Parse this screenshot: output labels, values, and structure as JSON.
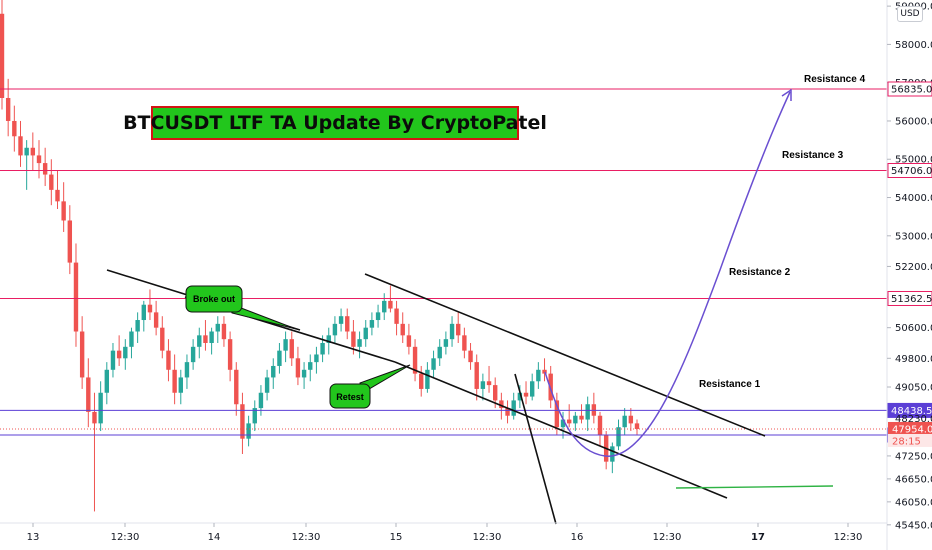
{
  "chart_data": {
    "type": "candlestick",
    "title": "BTCUSDT LTF TA Update By CryptoPatel",
    "currency": "USD",
    "y_axis": {
      "range": [
        45200,
        59500
      ],
      "ticks": [
        "45450.0",
        "46050.0",
        "46650.0",
        "47250.0",
        "49050.0",
        "49800.0",
        "50600.0",
        "51400.0",
        "52200.0",
        "53000.0",
        "54000.0",
        "55000.0",
        "56000.0",
        "57000.0",
        "58000.0",
        "59000.0"
      ]
    },
    "x_axis": {
      "ticks": [
        {
          "label": "13",
          "bold": false
        },
        {
          "label": "12:30",
          "bold": false
        },
        {
          "label": "14",
          "bold": false
        },
        {
          "label": "12:30",
          "bold": false
        },
        {
          "label": "15",
          "bold": false
        },
        {
          "label": "12:30",
          "bold": false
        },
        {
          "label": "16",
          "bold": false
        },
        {
          "label": "12:30",
          "bold": false
        },
        {
          "label": "17",
          "bold": true
        },
        {
          "label": "12:30",
          "bold": false
        }
      ]
    },
    "horizontal_levels": [
      {
        "name": "Resistance 4",
        "value": 56835.0,
        "label": "56835.0",
        "color": "#e91e63"
      },
      {
        "name": "Resistance 3",
        "value": 54706.0,
        "label": "54706.0",
        "color": "#e91e63"
      },
      {
        "name": "Resistance 2",
        "value": 51362.5,
        "label": "51362.5",
        "color": "#e91e63"
      },
      {
        "name": "Resistance 1",
        "value": 48438.5,
        "label": "48438.5",
        "color": "#5b3fd6"
      },
      {
        "name": "",
        "value": 47796.5,
        "label": "47796.5",
        "color": "#5b3fd6"
      }
    ],
    "price_tags": [
      {
        "label": "48230.0",
        "value": 48230.0,
        "color": "#ffffff",
        "text_color": "#131722"
      },
      {
        "label": "47954.0",
        "value": 47954.0,
        "color": "#ef5350",
        "text_color": "#ffffff"
      },
      {
        "label": "28:15",
        "value": 47790.0,
        "color": "#fde7e7",
        "text_color": "#ef5350"
      }
    ],
    "annotations": {
      "resistance_labels": [
        "Resistance 4",
        "Resistance 3",
        "Resistance 2",
        "Resistance 1"
      ],
      "callouts": [
        "Broke out",
        "Retest"
      ]
    },
    "candles": [
      [
        58800,
        59300,
        56300,
        56600
      ],
      [
        56600,
        57100,
        55600,
        56000
      ],
      [
        56000,
        56400,
        55200,
        55600
      ],
      [
        55600,
        56000,
        54800,
        55100
      ],
      [
        55100,
        55500,
        54200,
        55300
      ],
      [
        55300,
        55700,
        54700,
        55100
      ],
      [
        55100,
        55500,
        54500,
        54900
      ],
      [
        54900,
        55300,
        54300,
        54600
      ],
      [
        54600,
        55000,
        53800,
        54200
      ],
      [
        54200,
        54700,
        53700,
        53900
      ],
      [
        53900,
        54400,
        53100,
        53400
      ],
      [
        53400,
        53800,
        52000,
        52300
      ],
      [
        52300,
        52800,
        50100,
        50500
      ],
      [
        50500,
        50900,
        49000,
        49300
      ],
      [
        49300,
        49800,
        48000,
        48400
      ],
      [
        48400,
        48900,
        45800,
        48100
      ],
      [
        48100,
        49200,
        47900,
        48900
      ],
      [
        48900,
        49700,
        48600,
        49500
      ],
      [
        49500,
        50200,
        49300,
        50000
      ],
      [
        50000,
        50400,
        49600,
        49800
      ],
      [
        49800,
        50300,
        49500,
        50100
      ],
      [
        50100,
        50600,
        49800,
        50500
      ],
      [
        50500,
        51000,
        50200,
        50800
      ],
      [
        50800,
        51300,
        50500,
        51200
      ],
      [
        51200,
        51600,
        50800,
        51000
      ],
      [
        51000,
        51300,
        50400,
        50600
      ],
      [
        50600,
        50900,
        49800,
        50000
      ],
      [
        50000,
        50300,
        49200,
        49500
      ],
      [
        49500,
        49900,
        48600,
        48900
      ],
      [
        48900,
        49500,
        48600,
        49300
      ],
      [
        49300,
        49900,
        49000,
        49700
      ],
      [
        49700,
        50300,
        49500,
        50100
      ],
      [
        50100,
        50600,
        49800,
        50400
      ],
      [
        50400,
        50800,
        50000,
        50200
      ],
      [
        50200,
        50600,
        49900,
        50500
      ],
      [
        50500,
        50900,
        50200,
        50700
      ],
      [
        50700,
        50900,
        50100,
        50300
      ],
      [
        50300,
        50500,
        49200,
        49500
      ],
      [
        49500,
        49700,
        48300,
        48600
      ],
      [
        48600,
        48900,
        47300,
        47700
      ],
      [
        47700,
        48300,
        47500,
        48100
      ],
      [
        48100,
        48700,
        47900,
        48500
      ],
      [
        48500,
        49100,
        48300,
        48900
      ],
      [
        48900,
        49500,
        48700,
        49300
      ],
      [
        49300,
        49800,
        49000,
        49600
      ],
      [
        49600,
        50200,
        49400,
        50000
      ],
      [
        50000,
        50500,
        49700,
        50300
      ],
      [
        50300,
        50500,
        49600,
        49800
      ],
      [
        49800,
        50100,
        49100,
        49300
      ],
      [
        49300,
        49700,
        49000,
        49500
      ],
      [
        49500,
        49900,
        49200,
        49700
      ],
      [
        49700,
        50100,
        49400,
        49900
      ],
      [
        49900,
        50400,
        49700,
        50200
      ],
      [
        50200,
        50600,
        49900,
        50400
      ],
      [
        50400,
        50900,
        50200,
        50700
      ],
      [
        50700,
        51100,
        50500,
        50900
      ],
      [
        50900,
        51100,
        50300,
        50500
      ],
      [
        50500,
        50800,
        49900,
        50100
      ],
      [
        50100,
        50500,
        49800,
        50300
      ],
      [
        50300,
        50800,
        50100,
        50600
      ],
      [
        50600,
        51000,
        50400,
        50800
      ],
      [
        50800,
        51200,
        50600,
        51000
      ],
      [
        51000,
        51500,
        50800,
        51300
      ],
      [
        51300,
        51700,
        51000,
        51100
      ],
      [
        51100,
        51300,
        50400,
        50700
      ],
      [
        50700,
        51000,
        50200,
        50400
      ],
      [
        50400,
        50700,
        49900,
        50100
      ],
      [
        50100,
        50300,
        49200,
        49400
      ],
      [
        49400,
        49600,
        48800,
        49000
      ],
      [
        49000,
        49700,
        48900,
        49500
      ],
      [
        49500,
        50000,
        49300,
        49800
      ],
      [
        49800,
        50300,
        49600,
        50100
      ],
      [
        50100,
        50500,
        49900,
        50300
      ],
      [
        50300,
        50900,
        50100,
        50700
      ],
      [
        50700,
        51000,
        50200,
        50400
      ],
      [
        50400,
        50600,
        49800,
        50000
      ],
      [
        50000,
        50200,
        49500,
        49700
      ],
      [
        49700,
        49900,
        48700,
        49000
      ],
      [
        49000,
        49400,
        48700,
        49200
      ],
      [
        49200,
        49600,
        48900,
        49100
      ],
      [
        49100,
        49300,
        48500,
        48700
      ],
      [
        48700,
        48900,
        48200,
        48500
      ],
      [
        48500,
        48700,
        48100,
        48300
      ],
      [
        48300,
        48900,
        48200,
        48700
      ],
      [
        48700,
        49100,
        48500,
        48900
      ],
      [
        48900,
        49200,
        48600,
        48800
      ],
      [
        48800,
        49400,
        48700,
        49200
      ],
      [
        49200,
        49700,
        49000,
        49500
      ],
      [
        49500,
        49800,
        49200,
        49400
      ],
      [
        49400,
        49600,
        48500,
        48700
      ],
      [
        48700,
        48900,
        47800,
        48000
      ],
      [
        48000,
        48400,
        47700,
        48200
      ],
      [
        48200,
        48600,
        48000,
        48100
      ],
      [
        48100,
        48400,
        47900,
        48300
      ],
      [
        48300,
        48600,
        48100,
        48200
      ],
      [
        48200,
        48800,
        47900,
        48600
      ],
      [
        48600,
        48900,
        48100,
        48300
      ],
      [
        48300,
        48400,
        47500,
        47800
      ],
      [
        47800,
        47900,
        46900,
        47100
      ],
      [
        47100,
        47600,
        46800,
        47500
      ],
      [
        47500,
        48200,
        47400,
        48000
      ],
      [
        48000,
        48500,
        47800,
        48300
      ],
      [
        48300,
        48500,
        47900,
        48100
      ],
      [
        48100,
        48200,
        47800,
        47954
      ]
    ]
  }
}
